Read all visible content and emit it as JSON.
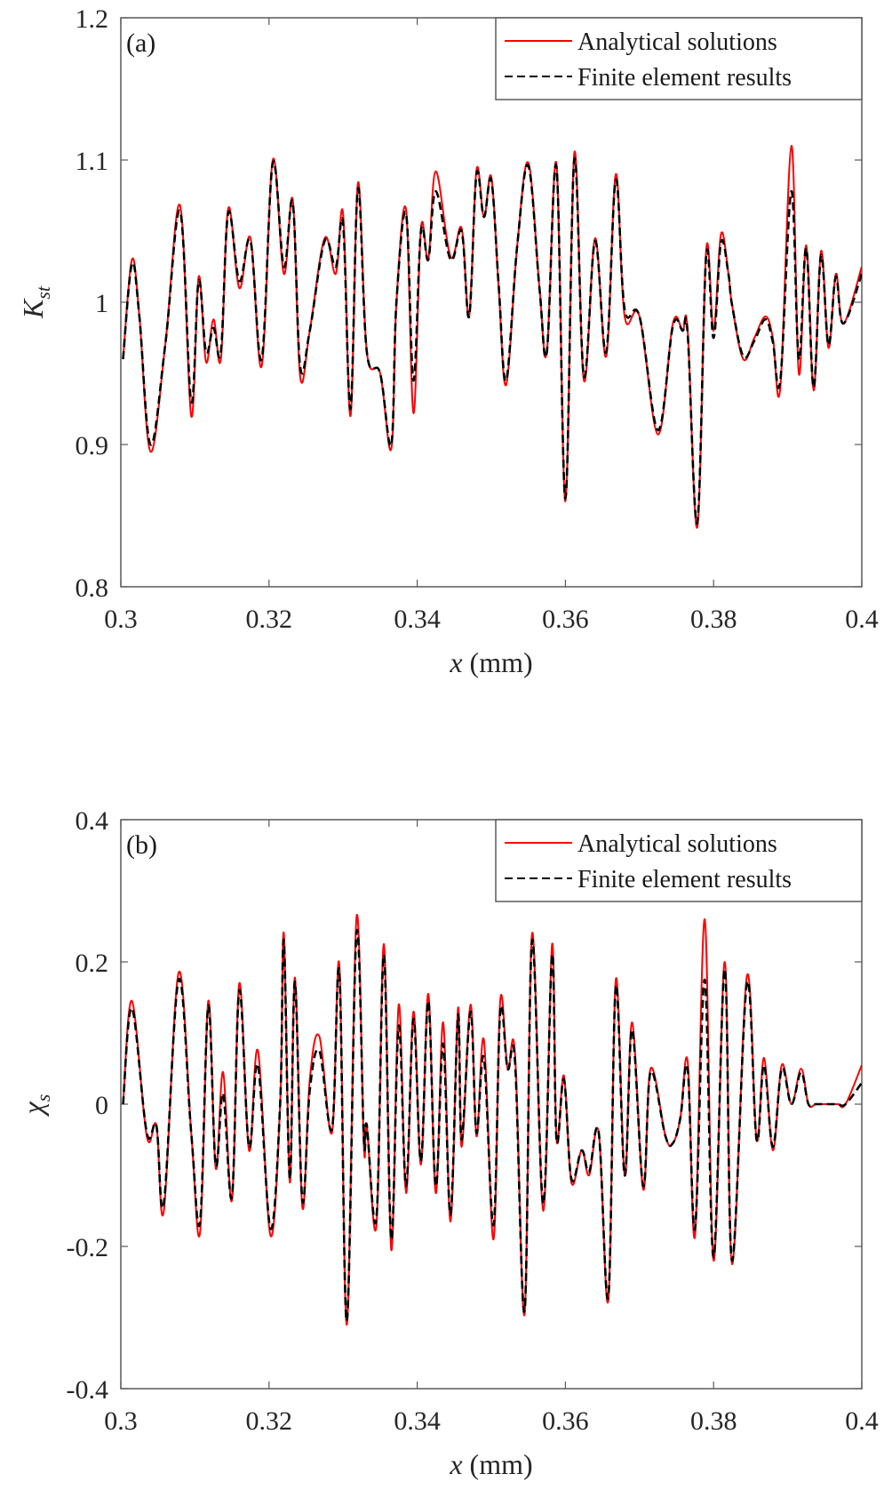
{
  "chart_data": [
    {
      "type": "line",
      "panel_label": "(a)",
      "xlabel": "x (mm)",
      "ylabel": "K_st",
      "ylabel_main": "K",
      "ylabel_sub": "st",
      "xlim": [
        0.3,
        0.4
      ],
      "ylim": [
        0.8,
        1.2
      ],
      "xticks": [
        0.3,
        0.32,
        0.34,
        0.36,
        0.38,
        0.4
      ],
      "xtick_labels": [
        "0.3",
        "0.32",
        "0.34",
        "0.36",
        "0.38",
        "0.4"
      ],
      "yticks": [
        0.8,
        0.9,
        1.0,
        1.1,
        1.2
      ],
      "ytick_labels": [
        "0.8",
        "0.9",
        "1",
        "1.1",
        "1.2"
      ],
      "grid": false,
      "legend_position": "top-right",
      "series": [
        {
          "name": "Analytical solutions",
          "color": "#ff0000",
          "style": "solid",
          "x": [
            0.3003,
            0.3015,
            0.3025,
            0.304,
            0.306,
            0.308,
            0.3095,
            0.3105,
            0.3115,
            0.3125,
            0.3135,
            0.3145,
            0.316,
            0.3175,
            0.319,
            0.3205,
            0.322,
            0.3232,
            0.3242,
            0.3255,
            0.3275,
            0.329,
            0.33,
            0.331,
            0.332,
            0.3332,
            0.335,
            0.3365,
            0.3372,
            0.3385,
            0.3395,
            0.3405,
            0.3415,
            0.3425,
            0.3445,
            0.346,
            0.347,
            0.348,
            0.349,
            0.35,
            0.351,
            0.352,
            0.3535,
            0.355,
            0.3565,
            0.3575,
            0.3588,
            0.36,
            0.3612,
            0.3625,
            0.364,
            0.3655,
            0.3668,
            0.368,
            0.37,
            0.3725,
            0.3745,
            0.3758,
            0.3765,
            0.3778,
            0.379,
            0.38,
            0.381,
            0.382,
            0.3825,
            0.384,
            0.3855,
            0.387,
            0.388,
            0.389,
            0.3905,
            0.3915,
            0.3925,
            0.3935,
            0.3945,
            0.3955,
            0.3965,
            0.3975,
            0.4
          ],
          "y": [
            0.96,
            1.03,
            0.99,
            0.895,
            0.97,
            1.068,
            0.92,
            1.018,
            0.958,
            0.988,
            0.96,
            1.066,
            1.01,
            1.045,
            0.955,
            1.1,
            1.02,
            1.072,
            0.948,
            0.98,
            1.045,
            1.02,
            1.062,
            0.92,
            1.084,
            0.965,
            0.95,
            0.897,
            1.0,
            1.065,
            0.922,
            1.052,
            1.03,
            1.092,
            1.032,
            1.052,
            0.99,
            1.093,
            1.06,
            1.088,
            1.01,
            0.942,
            1.04,
            1.098,
            1.01,
            0.965,
            1.097,
            0.86,
            1.105,
            0.945,
            1.045,
            0.962,
            1.09,
            0.99,
            0.99,
            0.907,
            0.985,
            0.98,
            0.98,
            0.842,
            1.037,
            0.98,
            1.048,
            1.02,
            0.998,
            0.96,
            0.975,
            0.99,
            0.975,
            0.94,
            1.11,
            0.95,
            1.04,
            0.938,
            1.036,
            0.968,
            1.02,
            0.985,
            1.025
          ]
        },
        {
          "name": "Finite element results",
          "color": "#000000",
          "style": "dashed",
          "x": [
            0.3003,
            0.3015,
            0.3025,
            0.304,
            0.306,
            0.308,
            0.3095,
            0.3105,
            0.3115,
            0.3125,
            0.3135,
            0.3145,
            0.316,
            0.3175,
            0.319,
            0.3205,
            0.322,
            0.3232,
            0.3242,
            0.3255,
            0.3275,
            0.329,
            0.33,
            0.331,
            0.332,
            0.3332,
            0.335,
            0.3365,
            0.3372,
            0.3385,
            0.3395,
            0.3405,
            0.3415,
            0.3425,
            0.3445,
            0.346,
            0.347,
            0.348,
            0.349,
            0.35,
            0.351,
            0.352,
            0.3535,
            0.355,
            0.3565,
            0.3575,
            0.3588,
            0.36,
            0.3612,
            0.3625,
            0.364,
            0.3655,
            0.3668,
            0.368,
            0.37,
            0.3725,
            0.3745,
            0.3758,
            0.3765,
            0.3778,
            0.379,
            0.38,
            0.381,
            0.382,
            0.3825,
            0.384,
            0.3855,
            0.387,
            0.388,
            0.389,
            0.3905,
            0.3915,
            0.3925,
            0.3935,
            0.3945,
            0.3955,
            0.3965,
            0.3975,
            0.4
          ],
          "y": [
            0.96,
            1.027,
            0.99,
            0.9,
            0.97,
            1.064,
            0.93,
            1.015,
            0.965,
            0.982,
            0.965,
            1.063,
            1.015,
            1.043,
            0.96,
            1.098,
            1.025,
            1.07,
            0.955,
            0.98,
            1.043,
            1.025,
            1.055,
            0.925,
            1.08,
            0.965,
            0.95,
            0.9,
            1.0,
            1.062,
            0.945,
            1.05,
            1.03,
            1.078,
            1.03,
            1.05,
            0.99,
            1.09,
            1.06,
            1.086,
            1.012,
            0.945,
            1.04,
            1.096,
            1.01,
            0.965,
            1.095,
            0.862,
            1.1,
            0.948,
            1.043,
            0.965,
            1.086,
            0.995,
            0.99,
            0.91,
            0.983,
            0.98,
            0.978,
            0.845,
            1.033,
            0.975,
            1.042,
            1.02,
            0.998,
            0.962,
            0.973,
            0.988,
            0.972,
            0.945,
            1.078,
            0.96,
            1.038,
            0.94,
            1.033,
            0.97,
            1.018,
            0.985,
            1.02
          ]
        }
      ]
    },
    {
      "type": "line",
      "panel_label": "(b)",
      "xlabel": "x (mm)",
      "ylabel": "χ_s",
      "ylabel_main": "χ",
      "ylabel_sub": "s",
      "xlim": [
        0.3,
        0.4
      ],
      "ylim": [
        -0.4,
        0.4
      ],
      "xticks": [
        0.3,
        0.32,
        0.34,
        0.36,
        0.38,
        0.4
      ],
      "xtick_labels": [
        "0.3",
        "0.32",
        "0.34",
        "0.36",
        "0.38",
        "0.4"
      ],
      "yticks": [
        -0.4,
        -0.2,
        0.0,
        0.2,
        0.4
      ],
      "ytick_labels": [
        "-0.4",
        "-0.2",
        "0",
        "0.2",
        "0.4"
      ],
      "grid": false,
      "legend_position": "top-right",
      "series": [
        {
          "name": "Analytical solutions",
          "color": "#ff0000",
          "style": "solid",
          "x": [
            0.3003,
            0.3015,
            0.3035,
            0.3048,
            0.3058,
            0.3078,
            0.3095,
            0.3107,
            0.3118,
            0.3128,
            0.3138,
            0.315,
            0.316,
            0.3173,
            0.3185,
            0.3202,
            0.3215,
            0.322,
            0.3228,
            0.3235,
            0.3245,
            0.3255,
            0.3268,
            0.3285,
            0.3295,
            0.3305,
            0.3318,
            0.3328,
            0.3332,
            0.3345,
            0.3355,
            0.3365,
            0.3375,
            0.3385,
            0.3395,
            0.3405,
            0.3415,
            0.3425,
            0.3435,
            0.3445,
            0.3455,
            0.346,
            0.3472,
            0.348,
            0.349,
            0.3503,
            0.3512,
            0.3522,
            0.3532,
            0.3545,
            0.3555,
            0.357,
            0.3582,
            0.3588,
            0.3598,
            0.3608,
            0.3622,
            0.3632,
            0.3645,
            0.3658,
            0.3668,
            0.368,
            0.369,
            0.3705,
            0.3715,
            0.3735,
            0.3745,
            0.3755,
            0.3765,
            0.3775,
            0.3788,
            0.38,
            0.3815,
            0.3825,
            0.3845,
            0.3858,
            0.3868,
            0.388,
            0.3892,
            0.3905,
            0.3918,
            0.3928,
            0.3938,
            0.3948,
            0.3958,
            0.3968,
            0.3978,
            0.4
          ],
          "y": [
            0.0,
            0.145,
            -0.045,
            -0.03,
            -0.15,
            0.185,
            -0.04,
            -0.18,
            0.145,
            -0.09,
            0.045,
            -0.135,
            0.17,
            -0.065,
            0.075,
            -0.185,
            0.0,
            0.24,
            -0.11,
            0.178,
            -0.145,
            0.035,
            0.095,
            -0.04,
            0.195,
            -0.31,
            0.262,
            -0.06,
            -0.03,
            -0.17,
            0.225,
            -0.205,
            0.14,
            -0.125,
            0.13,
            -0.085,
            0.155,
            -0.125,
            0.115,
            -0.165,
            0.135,
            -0.06,
            0.14,
            -0.045,
            0.09,
            -0.19,
            0.145,
            0.05,
            0.07,
            -0.295,
            0.24,
            -0.15,
            0.225,
            -0.05,
            0.04,
            -0.11,
            -0.065,
            -0.1,
            -0.04,
            -0.275,
            0.175,
            -0.1,
            0.115,
            -0.12,
            0.05,
            -0.045,
            -0.055,
            -0.02,
            0.06,
            -0.185,
            0.26,
            -0.22,
            0.2,
            -0.225,
            0.18,
            -0.05,
            0.065,
            -0.065,
            0.055,
            0.0,
            0.05,
            0.0,
            0.0,
            0.0,
            0.0,
            0.0,
            0.0,
            0.055
          ]
        },
        {
          "name": "Finite element results",
          "color": "#000000",
          "style": "dashed",
          "x": [
            0.3003,
            0.3015,
            0.3035,
            0.3048,
            0.3058,
            0.3078,
            0.3095,
            0.3107,
            0.3118,
            0.3128,
            0.3138,
            0.315,
            0.316,
            0.3173,
            0.3185,
            0.3202,
            0.3215,
            0.322,
            0.3228,
            0.3235,
            0.3245,
            0.3255,
            0.3268,
            0.3285,
            0.3295,
            0.3305,
            0.3318,
            0.3328,
            0.3332,
            0.3345,
            0.3355,
            0.3365,
            0.3375,
            0.3385,
            0.3395,
            0.3405,
            0.3415,
            0.3425,
            0.3435,
            0.3445,
            0.3455,
            0.346,
            0.3472,
            0.348,
            0.349,
            0.3503,
            0.3512,
            0.3522,
            0.3532,
            0.3545,
            0.3555,
            0.357,
            0.3582,
            0.3588,
            0.3598,
            0.3608,
            0.3622,
            0.3632,
            0.3645,
            0.3658,
            0.3668,
            0.368,
            0.369,
            0.3705,
            0.3715,
            0.3735,
            0.3745,
            0.3755,
            0.3765,
            0.3775,
            0.3788,
            0.38,
            0.3815,
            0.3825,
            0.3845,
            0.3858,
            0.3868,
            0.388,
            0.3892,
            0.3905,
            0.3918,
            0.3928,
            0.3938,
            0.3948,
            0.3958,
            0.3968,
            0.3978,
            0.4
          ],
          "y": [
            0.0,
            0.135,
            -0.04,
            -0.03,
            -0.14,
            0.175,
            -0.04,
            -0.165,
            0.138,
            -0.085,
            0.015,
            -0.13,
            0.16,
            -0.06,
            0.055,
            -0.175,
            0.0,
            0.23,
            -0.105,
            0.172,
            -0.135,
            0.02,
            0.075,
            -0.035,
            0.185,
            -0.305,
            0.24,
            -0.05,
            -0.03,
            -0.16,
            0.21,
            -0.19,
            0.11,
            -0.115,
            0.12,
            -0.08,
            0.145,
            -0.115,
            0.085,
            -0.155,
            0.125,
            -0.05,
            0.13,
            -0.04,
            0.065,
            -0.17,
            0.13,
            0.05,
            0.06,
            -0.29,
            0.23,
            -0.14,
            0.21,
            -0.05,
            0.035,
            -0.105,
            -0.065,
            -0.095,
            -0.04,
            -0.27,
            0.165,
            -0.1,
            0.105,
            -0.115,
            0.045,
            -0.045,
            -0.055,
            -0.02,
            0.05,
            -0.175,
            0.175,
            -0.215,
            0.19,
            -0.22,
            0.17,
            -0.05,
            0.055,
            -0.06,
            0.05,
            0.0,
            0.045,
            0.0,
            0.0,
            0.0,
            0.0,
            0.0,
            0.0,
            0.03
          ]
        }
      ]
    }
  ]
}
